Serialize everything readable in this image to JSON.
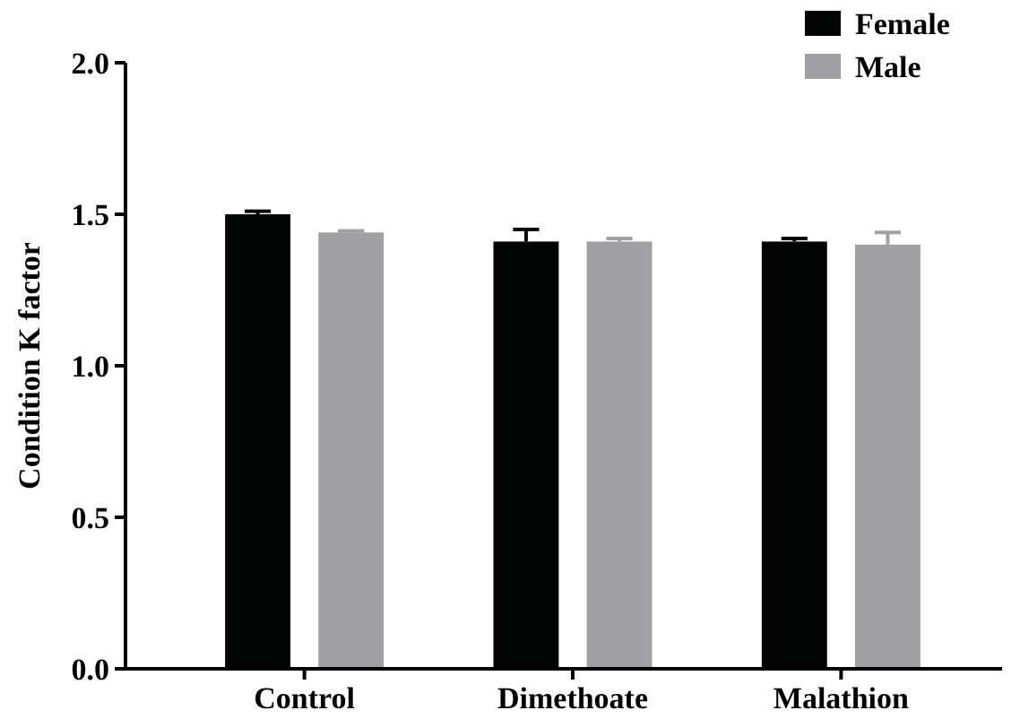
{
  "chart_data": {
    "type": "bar",
    "ylabel": "Condition K factor",
    "categories": [
      "Control",
      "Dimethoate",
      "Malathion"
    ],
    "series": [
      {
        "name": "Female",
        "color": "#030404",
        "values": [
          1.5,
          1.41,
          1.41
        ],
        "errors": [
          0.01,
          0.04,
          0.01
        ]
      },
      {
        "name": "Male",
        "color": "#a0a0a4",
        "values": [
          1.44,
          1.41,
          1.4
        ],
        "errors": [
          0.005,
          0.01,
          0.04
        ]
      }
    ],
    "ylim": [
      0,
      2
    ],
    "yticks": [
      {
        "value": 0,
        "label": "0.0"
      },
      0.5,
      {
        "value": 1,
        "label": "1.0"
      },
      1.5,
      {
        "value": 2,
        "label": "2.0"
      }
    ],
    "grid": false,
    "legend": "top right"
  }
}
